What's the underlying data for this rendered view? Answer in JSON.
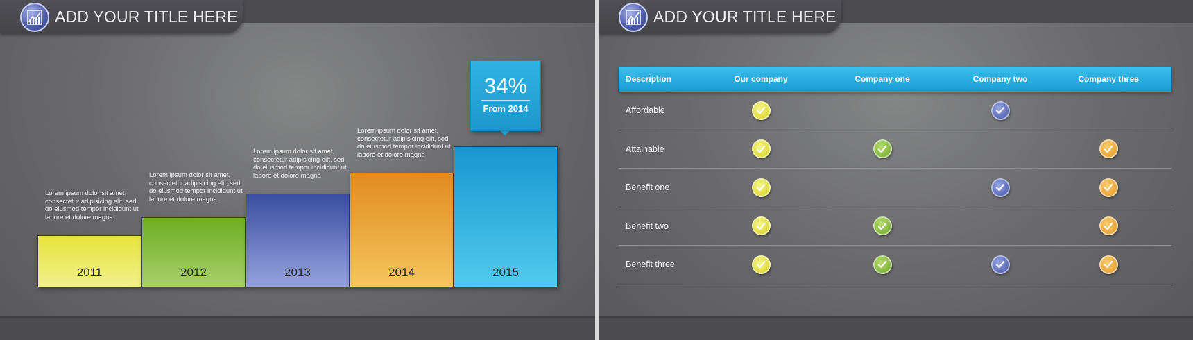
{
  "colors": {
    "yellow": "#e8e448",
    "green": "#7fb52b",
    "blue": "#5062b0",
    "orange": "#ee9f2f",
    "cyan": "#1ea6d6",
    "header": "#22a8dc"
  },
  "left_slide": {
    "title": "ADD YOUR TITLE HERE",
    "icon": "chart-icon",
    "callout": {
      "value": "34%",
      "subtitle": "From 2014"
    },
    "chart_data": {
      "type": "bar",
      "categories": [
        "2011",
        "2012",
        "2013",
        "2014",
        "2015"
      ],
      "values": [
        1,
        1.35,
        1.8,
        2.2,
        2.7
      ],
      "descriptions": [
        "Lorem ipsum dolor sit amet, consectetur adipisicing elit, sed do eiusmod tempor incididunt ut labore et dolore magna",
        "Lorem ipsum dolor sit amet, consectetur adipisicing elit, sed do eiusmod tempor incididunt ut labore et dolore magna",
        "Lorem ipsum dolor sit amet, consectetur adipisicing elit, sed do eiusmod tempor incididunt ut labore et dolore magna",
        "Lorem ipsum dolor sit amet, consectetur adipisicing elit, sed do eiusmod tempor incididunt ut labore et dolore magna",
        ""
      ],
      "bar_colors": [
        "yellow",
        "green",
        "blue",
        "orange",
        "cyan"
      ]
    }
  },
  "right_slide": {
    "title": "ADD YOUR TITLE HERE",
    "icon": "chart-icon",
    "table": {
      "headers": [
        "Description",
        "Our company",
        "Company one",
        "Company two",
        "Company three"
      ],
      "rows": [
        {
          "label": "Affordable",
          "checks": [
            true,
            false,
            true,
            false
          ]
        },
        {
          "label": "Attainable",
          "checks": [
            true,
            true,
            false,
            true
          ]
        },
        {
          "label": "Benefit one",
          "checks": [
            true,
            false,
            true,
            true
          ]
        },
        {
          "label": "Benefit two",
          "checks": [
            true,
            true,
            false,
            true
          ]
        },
        {
          "label": "Benefit three",
          "checks": [
            true,
            true,
            true,
            true
          ]
        }
      ],
      "check_colors": [
        "yellow",
        "green",
        "blue",
        "orange"
      ]
    }
  }
}
